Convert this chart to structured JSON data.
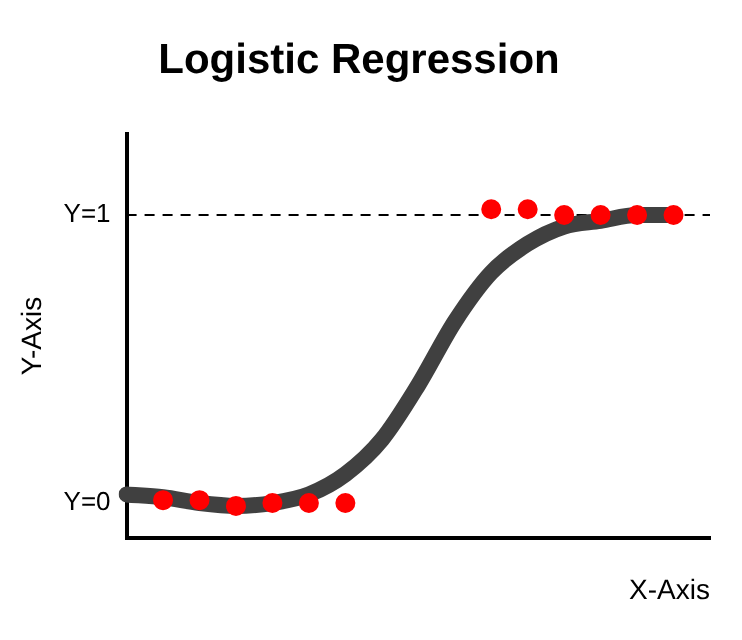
{
  "chart_data": {
    "type": "line",
    "title": "Logistic Regression",
    "xlabel": "X-Axis",
    "ylabel": "Y-Axis",
    "categories": [
      null,
      null,
      null,
      null,
      null,
      null,
      null,
      null,
      null,
      null,
      null,
      null,
      null,
      null,
      null,
      null,
      null
    ],
    "ylim": [
      -0.12,
      1.28
    ],
    "yticks": [
      {
        "value": 0,
        "label": "Y=0"
      },
      {
        "value": 1,
        "label": "Y=1"
      }
    ],
    "grid": false,
    "legend": false,
    "ref_lines": [
      {
        "axis": "y",
        "value": 1,
        "label": null,
        "color": "#000000",
        "line_style": "dashed"
      }
    ],
    "series": [
      {
        "type": "line",
        "color": "#404040",
        "marker": "none",
        "values": [
          0.03,
          0.02,
          0,
          -0.01,
          0,
          0.03,
          0.1,
          0.22,
          0.41,
          0.63,
          0.8,
          0.9,
          0.96,
          0.98,
          1.0,
          1.0,
          null
        ]
      },
      {
        "type": "scatter",
        "color": "#ff0000",
        "marker": "circle",
        "values": [
          null,
          0.01,
          0.01,
          -0.01,
          0,
          0,
          0,
          null,
          null,
          null,
          1.02,
          1.02,
          1.0,
          1.0,
          1.0,
          1.0,
          null
        ]
      }
    ]
  }
}
